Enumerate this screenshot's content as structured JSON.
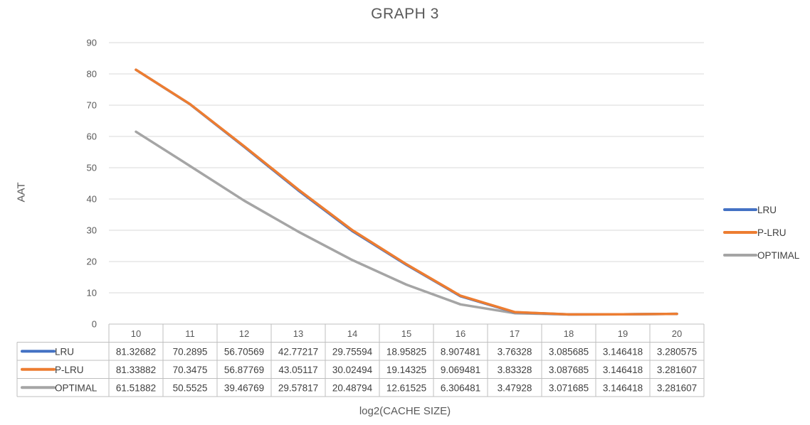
{
  "chart_data": {
    "type": "line",
    "title": "GRAPH 3",
    "xlabel": "log2(CACHE SIZE)",
    "ylabel": "AAT",
    "ylim": [
      0,
      90
    ],
    "yticks": [
      0,
      10,
      20,
      30,
      40,
      50,
      60,
      70,
      80,
      90
    ],
    "grid": true,
    "legend_position": "right",
    "categories": [
      "10",
      "11",
      "12",
      "13",
      "14",
      "15",
      "16",
      "17",
      "18",
      "19",
      "20"
    ],
    "series": [
      {
        "name": "LRU",
        "color": "#4472C4",
        "values": [
          81.32682,
          70.2895,
          56.70569,
          42.77217,
          29.75594,
          18.95825,
          8.907481,
          3.76328,
          3.085685,
          3.146418,
          3.280575
        ],
        "labels": [
          "81.32682",
          "70.2895",
          "56.70569",
          "42.77217",
          "29.75594",
          "18.95825",
          "8.907481",
          "3.76328",
          "3.085685",
          "3.146418",
          "3.280575"
        ]
      },
      {
        "name": "P-LRU",
        "color": "#ED7D31",
        "values": [
          81.33882,
          70.3475,
          56.87769,
          43.05117,
          30.02494,
          19.14325,
          9.069481,
          3.83328,
          3.087685,
          3.146418,
          3.281607
        ],
        "labels": [
          "81.33882",
          "70.3475",
          "56.87769",
          "43.05117",
          "30.02494",
          "19.14325",
          "9.069481",
          "3.83328",
          "3.087685",
          "3.146418",
          "3.281607"
        ]
      },
      {
        "name": "OPTIMAL",
        "color": "#A5A5A5",
        "values": [
          61.51882,
          50.5525,
          39.46769,
          29.57817,
          20.48794,
          12.61525,
          6.306481,
          3.47928,
          3.071685,
          3.146418,
          3.281607
        ],
        "labels": [
          "61.51882",
          "50.5525",
          "39.46769",
          "29.57817",
          "20.48794",
          "12.61525",
          "6.306481",
          "3.47928",
          "3.071685",
          "3.146418",
          "3.281607"
        ]
      }
    ]
  }
}
